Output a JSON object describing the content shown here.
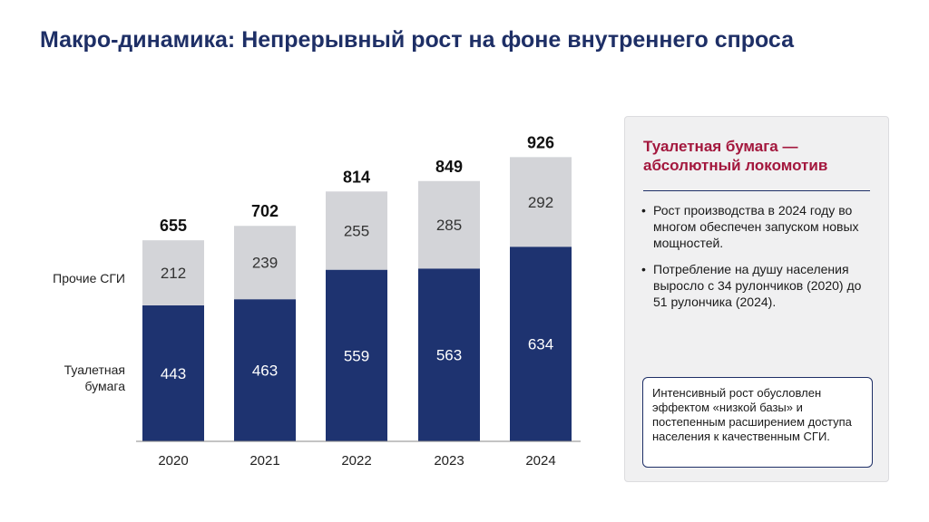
{
  "title": "Макро-динамика: Непрерывный рост на фоне внутреннего спроса",
  "colors": {
    "navy": "#1e3370",
    "gray": "#d3d4d8",
    "accent": "#a3173d"
  },
  "chart_data": {
    "type": "bar",
    "stacked": true,
    "categories": [
      "2020",
      "2021",
      "2022",
      "2023",
      "2024"
    ],
    "series": [
      {
        "name": "Туалетная бумага",
        "values": [
          443,
          463,
          559,
          563,
          634
        ]
      },
      {
        "name": "Прочие СГИ",
        "values": [
          212,
          239,
          255,
          285,
          292
        ]
      }
    ],
    "totals": [
      655,
      702,
      814,
      849,
      926
    ],
    "ylim": [
      0,
      930
    ],
    "grid": false
  },
  "panel": {
    "title": "Туалетная бумага — абсолютный локомотив",
    "bullets": [
      "Рост производства в 2024 году во многом обеспечен запуском новых мощностей.",
      "Потребление на душу населения выросло с 34 рулончиков (2020) до 51 рулончика (2024)."
    ],
    "note": "Интенсивный рост обусловлен эффектом «низкой базы» и постепенным расширением доступа населения к качественным СГИ."
  }
}
